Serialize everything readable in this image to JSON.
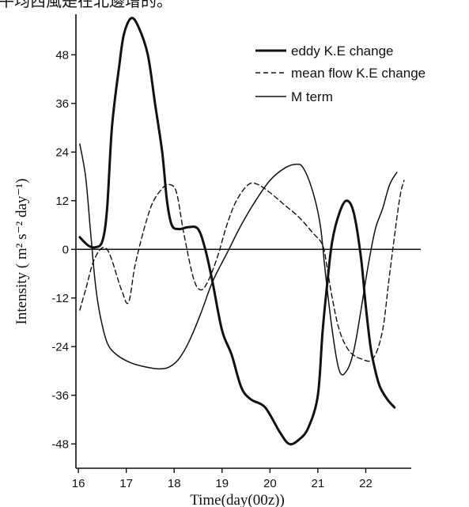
{
  "header_text": "平均西風是在北邊增的。",
  "chart_data": {
    "type": "line",
    "title": "",
    "xlabel": "Time(day(00z))",
    "ylabel": "Intensity ( m² s⁻² day⁻¹)",
    "xlim": [
      15.85,
      22.95
    ],
    "ylim": [
      -54,
      58
    ],
    "x_ticks": [
      16,
      17,
      18,
      19,
      20,
      21,
      22
    ],
    "y_ticks": [
      -48,
      -36,
      -24,
      -12,
      0,
      12,
      24,
      36,
      48
    ],
    "grid": false,
    "legend_position": "top-right",
    "series": [
      {
        "name": "eddy K.E change",
        "style": "thick-solid",
        "x": [
          16.03,
          16.2,
          16.35,
          16.5,
          16.6,
          16.7,
          16.85,
          16.95,
          17.1,
          17.25,
          17.45,
          17.6,
          17.75,
          17.85,
          17.95,
          18.1,
          18.3,
          18.5,
          18.65,
          18.8,
          19.0,
          19.2,
          19.4,
          19.6,
          19.9,
          20.2,
          20.4,
          20.6,
          20.8,
          21.0,
          21.1,
          21.2,
          21.3,
          21.45,
          21.6,
          21.75,
          21.9,
          22.0,
          22.1,
          22.2,
          22.3,
          22.45,
          22.6
        ],
        "y": [
          3,
          1,
          0.5,
          2,
          10,
          30,
          45,
          53,
          57,
          55,
          48,
          36,
          24,
          12,
          6,
          5,
          5.5,
          5,
          0,
          -8,
          -20,
          -26,
          -34,
          -37,
          -39,
          -45,
          -48,
          -47,
          -44,
          -36,
          -20,
          -8,
          2,
          9,
          12,
          9,
          -2,
          -14,
          -24,
          -30,
          -34,
          -37,
          -39
        ]
      },
      {
        "name": "mean flow K.E change",
        "style": "dashed",
        "x": [
          16.03,
          16.15,
          16.35,
          16.6,
          16.9,
          17.05,
          17.2,
          17.5,
          17.75,
          17.9,
          18.05,
          18.2,
          18.4,
          18.55,
          18.7,
          18.9,
          19.1,
          19.3,
          19.55,
          19.75,
          20.0,
          20.3,
          20.6,
          20.9,
          21.1,
          21.2,
          21.3,
          21.45,
          21.65,
          21.9,
          22.15,
          22.35,
          22.5,
          22.7,
          22.8
        ],
        "y": [
          -15,
          -10,
          -2,
          0,
          -10,
          -13,
          -3,
          10,
          15,
          16,
          14,
          4,
          -7,
          -10,
          -8,
          -2,
          6,
          12,
          16,
          16,
          14,
          11,
          8,
          4,
          1,
          -5,
          -12,
          -20,
          -25,
          -27,
          -27,
          -20,
          -6,
          12,
          17
        ]
      },
      {
        "name": "M term",
        "style": "thin-solid",
        "x": [
          16.03,
          16.15,
          16.25,
          16.35,
          16.45,
          16.6,
          16.8,
          17.1,
          17.4,
          17.7,
          17.9,
          18.1,
          18.3,
          18.55,
          18.8,
          19.1,
          19.4,
          19.7,
          20.0,
          20.3,
          20.55,
          20.7,
          20.9,
          21.05,
          21.15,
          21.3,
          21.45,
          21.6,
          21.75,
          21.9,
          22.05,
          22.2,
          22.35,
          22.5,
          22.65
        ],
        "y": [
          26,
          18,
          5,
          -8,
          -16,
          -23,
          -26,
          -28,
          -29,
          -29.5,
          -29,
          -27,
          -23,
          -16,
          -8,
          -1,
          6,
          12,
          17,
          20,
          21,
          20,
          14,
          6,
          -5,
          -20,
          -30,
          -30,
          -25,
          -15,
          -4,
          5,
          10,
          16,
          19
        ]
      }
    ]
  }
}
